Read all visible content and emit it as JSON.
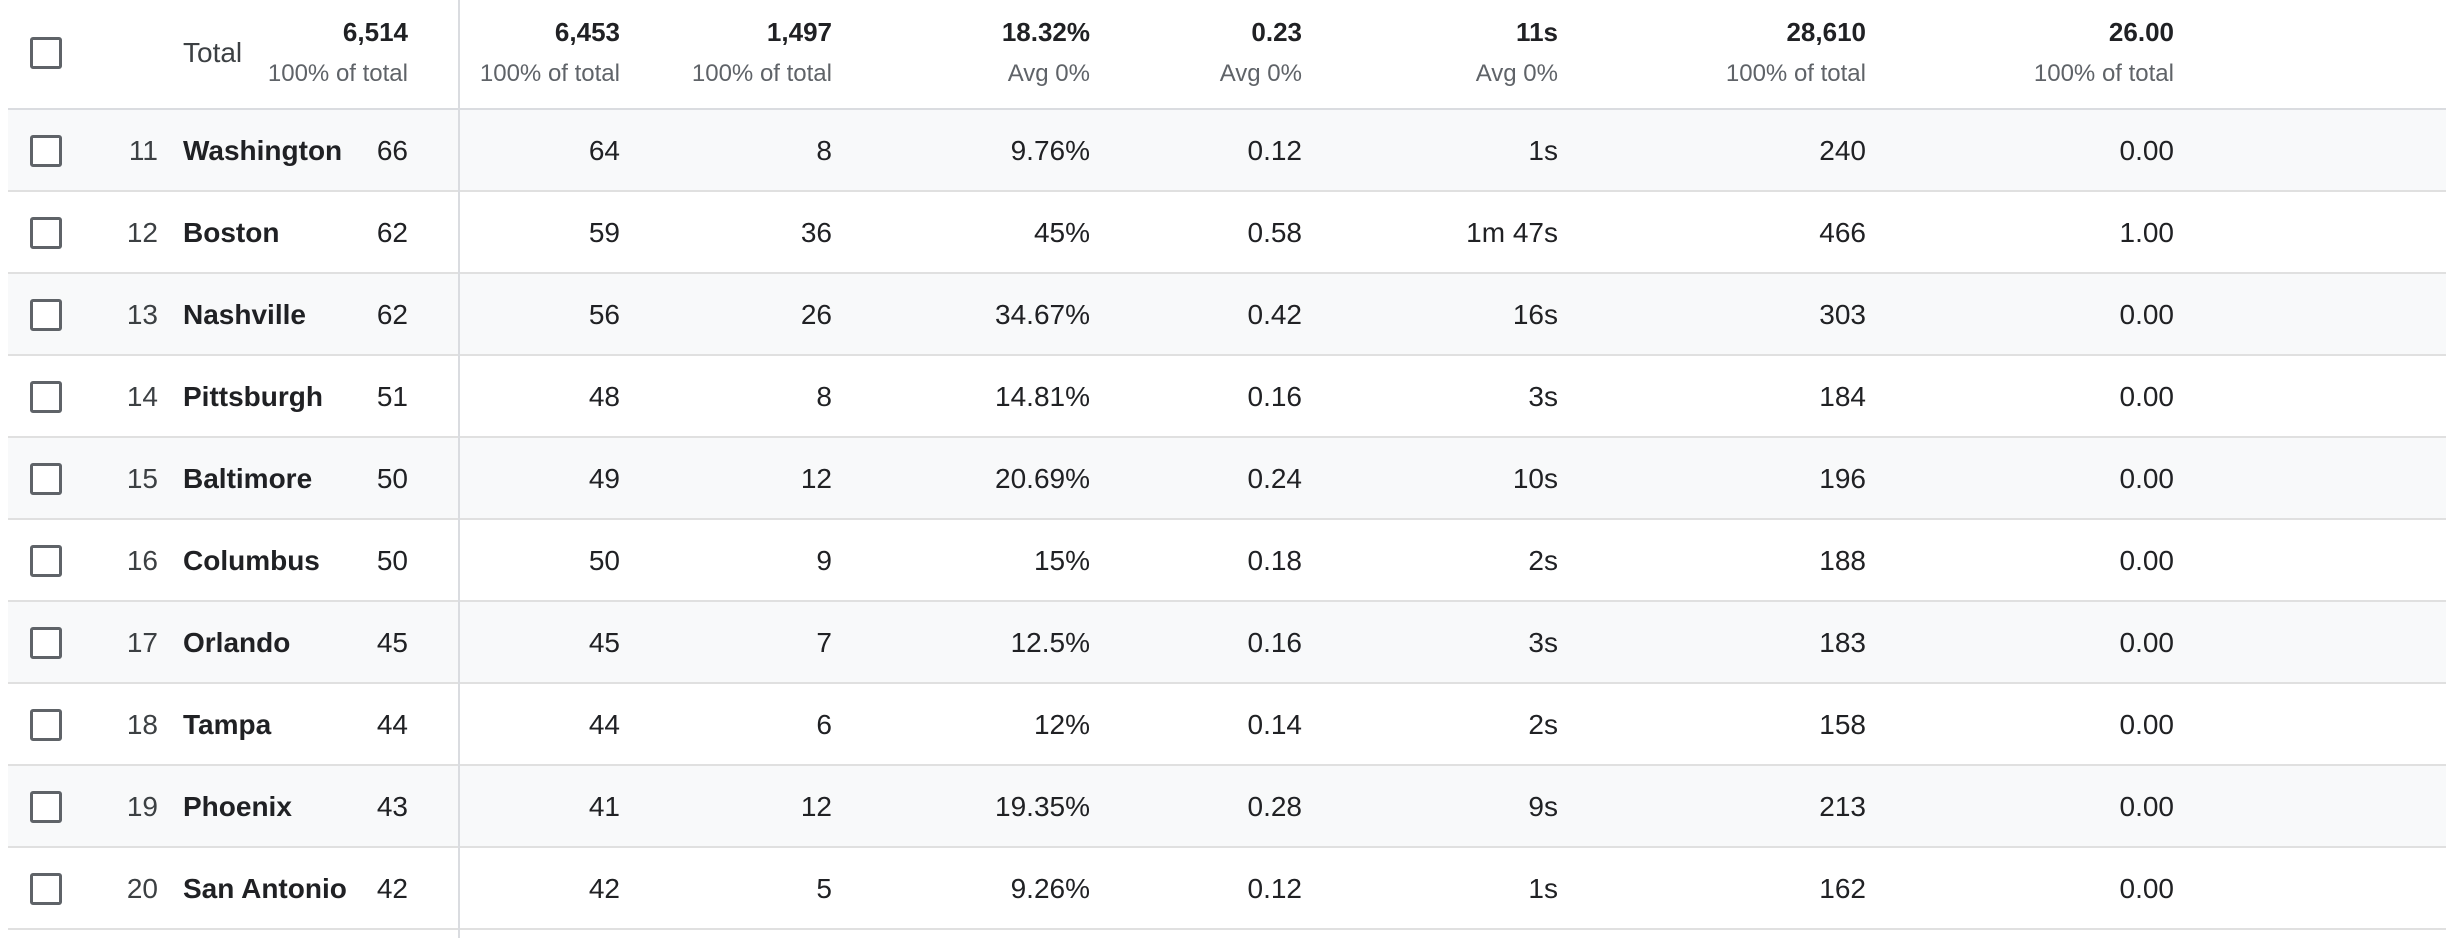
{
  "header": {
    "title": "Total",
    "columns": [
      {
        "total": "6,514",
        "sub": "100% of total"
      },
      {
        "total": "6,453",
        "sub": "100% of total"
      },
      {
        "total": "1,497",
        "sub": "100% of total"
      },
      {
        "total": "18.32%",
        "sub": "Avg 0%"
      },
      {
        "total": "0.23",
        "sub": "Avg 0%"
      },
      {
        "total": "11s",
        "sub": "Avg 0%"
      },
      {
        "total": "28,610",
        "sub": "100% of total"
      },
      {
        "total": "26.00",
        "sub": "100% of total"
      }
    ]
  },
  "rows": [
    {
      "rank": "11",
      "city": "Washington",
      "values": [
        "66",
        "64",
        "8",
        "9.76%",
        "0.12",
        "1s",
        "240",
        "0.00"
      ]
    },
    {
      "rank": "12",
      "city": "Boston",
      "values": [
        "62",
        "59",
        "36",
        "45%",
        "0.58",
        "1m 47s",
        "466",
        "1.00"
      ]
    },
    {
      "rank": "13",
      "city": "Nashville",
      "values": [
        "62",
        "56",
        "26",
        "34.67%",
        "0.42",
        "16s",
        "303",
        "0.00"
      ]
    },
    {
      "rank": "14",
      "city": "Pittsburgh",
      "values": [
        "51",
        "48",
        "8",
        "14.81%",
        "0.16",
        "3s",
        "184",
        "0.00"
      ]
    },
    {
      "rank": "15",
      "city": "Baltimore",
      "values": [
        "50",
        "49",
        "12",
        "20.69%",
        "0.24",
        "10s",
        "196",
        "0.00"
      ]
    },
    {
      "rank": "16",
      "city": "Columbus",
      "values": [
        "50",
        "50",
        "9",
        "15%",
        "0.18",
        "2s",
        "188",
        "0.00"
      ]
    },
    {
      "rank": "17",
      "city": "Orlando",
      "values": [
        "45",
        "45",
        "7",
        "12.5%",
        "0.16",
        "3s",
        "183",
        "0.00"
      ]
    },
    {
      "rank": "18",
      "city": "Tampa",
      "values": [
        "44",
        "44",
        "6",
        "12%",
        "0.14",
        "2s",
        "158",
        "0.00"
      ]
    },
    {
      "rank": "19",
      "city": "Phoenix",
      "values": [
        "43",
        "41",
        "12",
        "19.35%",
        "0.28",
        "9s",
        "213",
        "0.00"
      ]
    },
    {
      "rank": "20",
      "city": "San Antonio",
      "values": [
        "42",
        "42",
        "5",
        "9.26%",
        "0.12",
        "1s",
        "162",
        "0.00"
      ]
    }
  ]
}
